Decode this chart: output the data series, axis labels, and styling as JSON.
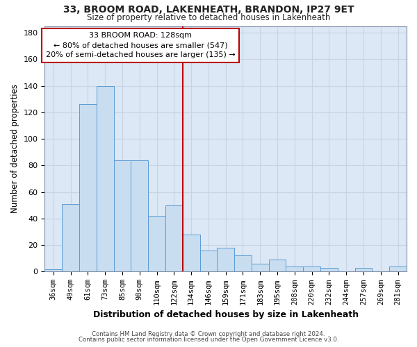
{
  "title1": "33, BROOM ROAD, LAKENHEATH, BRANDON, IP27 9ET",
  "title2": "Size of property relative to detached houses in Lakenheath",
  "xlabel": "Distribution of detached houses by size in Lakenheath",
  "ylabel": "Number of detached properties",
  "categories": [
    "36sqm",
    "49sqm",
    "61sqm",
    "73sqm",
    "85sqm",
    "98sqm",
    "110sqm",
    "122sqm",
    "134sqm",
    "146sqm",
    "159sqm",
    "171sqm",
    "183sqm",
    "195sqm",
    "208sqm",
    "220sqm",
    "232sqm",
    "244sqm",
    "257sqm",
    "269sqm",
    "281sqm"
  ],
  "values": [
    2,
    51,
    126,
    140,
    84,
    84,
    42,
    50,
    28,
    16,
    18,
    12,
    6,
    9,
    4,
    4,
    3,
    0,
    3,
    0,
    4
  ],
  "bar_color": "#c8ddef",
  "bar_edge_color": "#5b9bd5",
  "bar_width": 1.0,
  "vline_color": "#bb0000",
  "annotation_line1": "33 BROOM ROAD: 128sqm",
  "annotation_line2": "← 80% of detached houses are smaller (547)",
  "annotation_line3": "20% of semi-detached houses are larger (135) →",
  "annotation_box_color": "#bb0000",
  "ylim": [
    0,
    185
  ],
  "yticks": [
    0,
    20,
    40,
    60,
    80,
    100,
    120,
    140,
    160,
    180
  ],
  "grid_color": "#c8d4e4",
  "plot_bg_color": "#dce8f5",
  "fig_bg_color": "#ffffff",
  "footer1": "Contains HM Land Registry data © Crown copyright and database right 2024.",
  "footer2": "Contains public sector information licensed under the Open Government Licence v3.0."
}
